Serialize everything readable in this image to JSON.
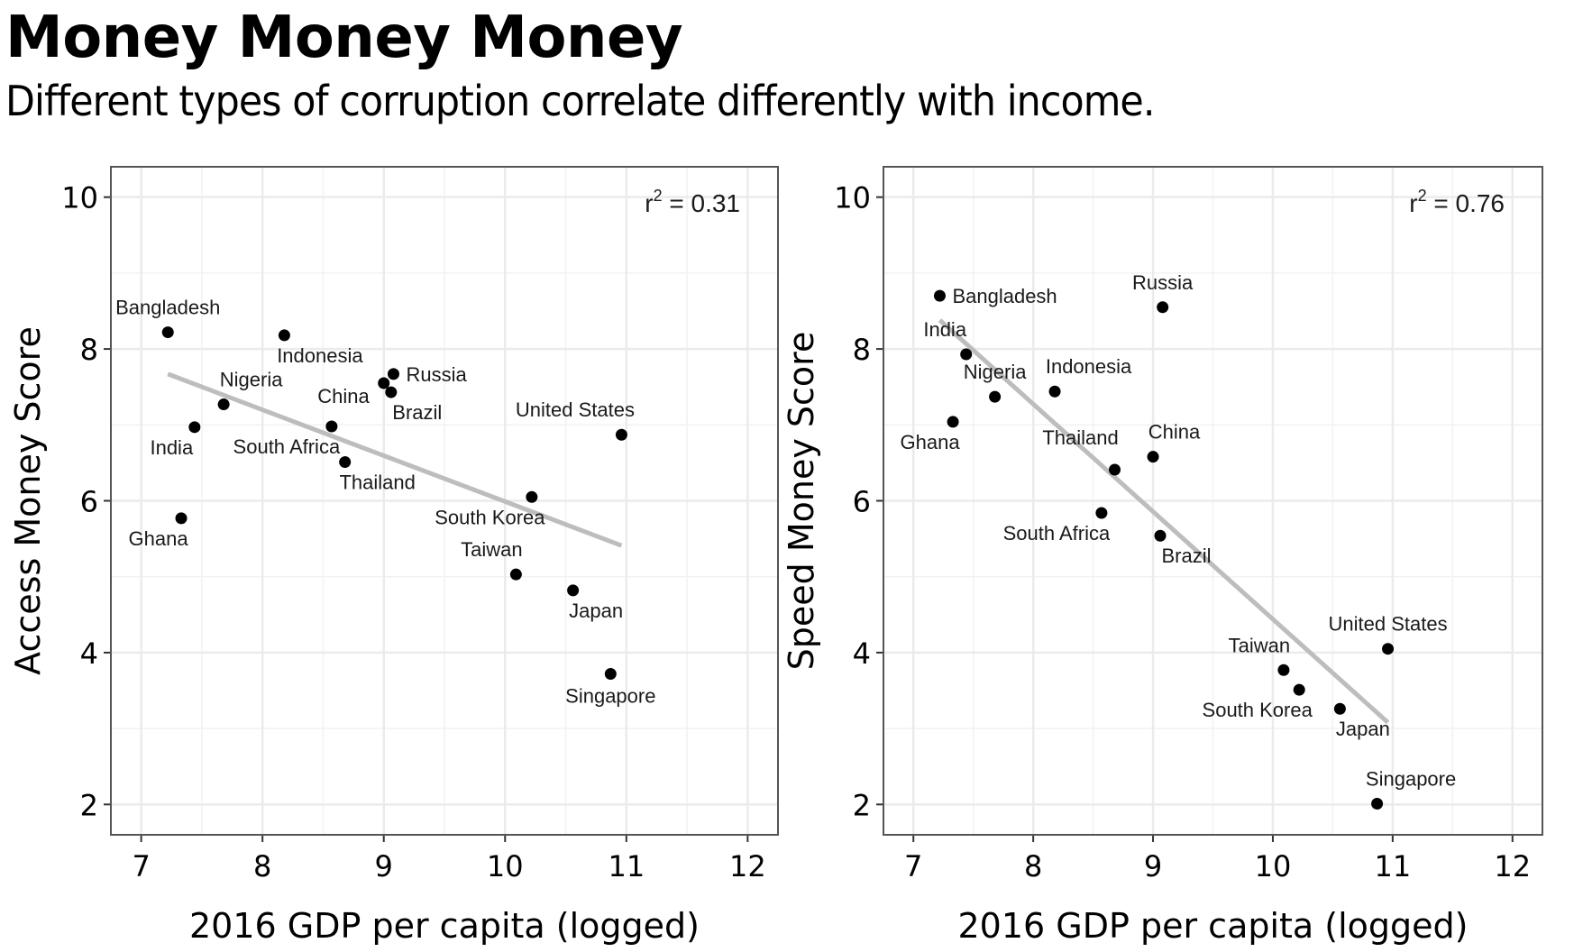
{
  "header": {
    "title": "Money Money Money",
    "subtitle": "Different types of corruption correlate differently with income."
  },
  "chart_data": [
    {
      "type": "scatter",
      "id": "access",
      "title": "",
      "xlabel": "2016 GDP per capita (logged)",
      "ylabel": "Access Money Score",
      "xlim": [
        6.75,
        12.25
      ],
      "ylim": [
        1.6,
        10.4
      ],
      "xticks": [
        7,
        8,
        9,
        10,
        11,
        12
      ],
      "yticks": [
        2,
        4,
        6,
        8,
        10
      ],
      "grid": true,
      "annotation": {
        "prefix": "r",
        "sup": "2",
        "text": " = 0.31"
      },
      "trendline": {
        "x": [
          7.22,
          10.96
        ],
        "y": [
          7.67,
          5.41
        ],
        "color": "#bdbdbd"
      },
      "point_color": "#000000",
      "points": [
        {
          "label": "Bangladesh",
          "x": 7.22,
          "y": 8.22,
          "anchor": "above"
        },
        {
          "label": "Indonesia",
          "x": 8.18,
          "y": 8.18,
          "anchor": "below-right"
        },
        {
          "label": "Russia",
          "x": 9.08,
          "y": 7.67,
          "anchor": "right"
        },
        {
          "label": "China",
          "x": 9.0,
          "y": 7.55,
          "anchor": "left-below"
        },
        {
          "label": "Brazil",
          "x": 9.06,
          "y": 7.43,
          "anchor": "below-right"
        },
        {
          "label": "Nigeria",
          "x": 7.68,
          "y": 7.27,
          "anchor": "above-right"
        },
        {
          "label": "India",
          "x": 7.44,
          "y": 6.97,
          "anchor": "below-left"
        },
        {
          "label": "South Africa",
          "x": 8.57,
          "y": 6.98,
          "anchor": "below-left"
        },
        {
          "label": "Thailand",
          "x": 8.68,
          "y": 6.51,
          "anchor": "below-right"
        },
        {
          "label": "United States",
          "x": 10.96,
          "y": 6.87,
          "anchor": "above-left"
        },
        {
          "label": "South Korea",
          "x": 10.22,
          "y": 6.05,
          "anchor": "below-left"
        },
        {
          "label": "Ghana",
          "x": 7.33,
          "y": 5.77,
          "anchor": "below-left"
        },
        {
          "label": "Taiwan",
          "x": 10.09,
          "y": 5.03,
          "anchor": "above-left"
        },
        {
          "label": "Japan",
          "x": 10.56,
          "y": 4.82,
          "anchor": "below-right"
        },
        {
          "label": "Singapore",
          "x": 10.87,
          "y": 3.72,
          "anchor": "below"
        }
      ]
    },
    {
      "type": "scatter",
      "id": "speed",
      "title": "",
      "xlabel": "2016 GDP per capita (logged)",
      "ylabel": "Speed Money Score",
      "xlim": [
        6.75,
        12.25
      ],
      "ylim": [
        1.6,
        10.4
      ],
      "xticks": [
        7,
        8,
        9,
        10,
        11,
        12
      ],
      "yticks": [
        2,
        4,
        6,
        8,
        10
      ],
      "grid": true,
      "annotation": {
        "prefix": "r",
        "sup": "2",
        "text": " = 0.76"
      },
      "trendline": {
        "x": [
          7.22,
          10.96
        ],
        "y": [
          8.38,
          3.08
        ],
        "color": "#bdbdbd"
      },
      "point_color": "#000000",
      "points": [
        {
          "label": "Bangladesh",
          "x": 7.22,
          "y": 8.7,
          "anchor": "right"
        },
        {
          "label": "Russia",
          "x": 9.08,
          "y": 8.55,
          "anchor": "above"
        },
        {
          "label": "India",
          "x": 7.44,
          "y": 7.93,
          "anchor": "above-left"
        },
        {
          "label": "Nigeria",
          "x": 7.68,
          "y": 7.37,
          "anchor": "above"
        },
        {
          "label": "Indonesia",
          "x": 8.18,
          "y": 7.44,
          "anchor": "above-right"
        },
        {
          "label": "Ghana",
          "x": 7.33,
          "y": 7.04,
          "anchor": "below-left"
        },
        {
          "label": "China",
          "x": 9.0,
          "y": 6.58,
          "anchor": "above-right"
        },
        {
          "label": "Thailand",
          "x": 8.68,
          "y": 6.41,
          "anchor": "below-left-far"
        },
        {
          "label": "South Africa",
          "x": 8.57,
          "y": 5.84,
          "anchor": "below-left"
        },
        {
          "label": "Brazil",
          "x": 9.06,
          "y": 5.54,
          "anchor": "below-right"
        },
        {
          "label": "United States",
          "x": 10.96,
          "y": 4.05,
          "anchor": "above"
        },
        {
          "label": "Taiwan",
          "x": 10.09,
          "y": 3.77,
          "anchor": "above-left"
        },
        {
          "label": "South Korea",
          "x": 10.22,
          "y": 3.51,
          "anchor": "below-left"
        },
        {
          "label": "Japan",
          "x": 10.56,
          "y": 3.26,
          "anchor": "below-right"
        },
        {
          "label": "Singapore",
          "x": 10.87,
          "y": 2.01,
          "anchor": "above-right"
        }
      ]
    }
  ]
}
